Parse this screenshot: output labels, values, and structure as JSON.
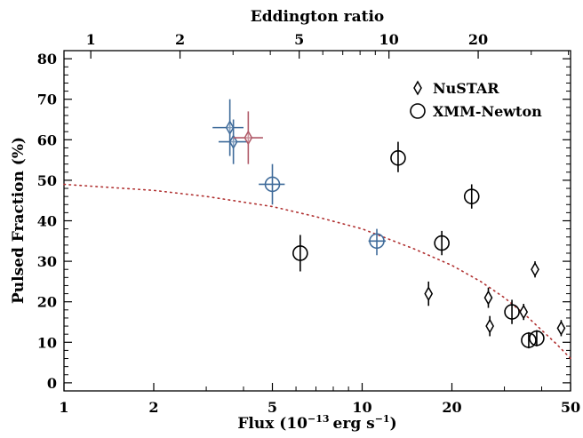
{
  "chart_data": {
    "type": "scatter",
    "xlabel": "Flux (10",
    "xlabel_exponent": "−13",
    "xlabel_units": "erg s",
    "xlabel_units_exponent": "−1",
    "xlabel_close": ")",
    "ylabel": "Pulsed Fraction (%)",
    "top_axis_label": "Eddington ratio",
    "x_scale": "log",
    "xlim": [
      1,
      50
    ],
    "ylim": [
      -2,
      82
    ],
    "x_ticks": [
      1,
      2,
      5,
      10,
      20,
      50
    ],
    "x_tick_labels": [
      "1",
      "2",
      "5",
      "10",
      "20",
      "50"
    ],
    "y_ticks": [
      0,
      10,
      20,
      30,
      40,
      50,
      60,
      70,
      80
    ],
    "y_tick_labels": [
      "0",
      "10",
      "20",
      "30",
      "40",
      "50",
      "60",
      "70",
      "80"
    ],
    "top_ticks_flux": [
      1.23,
      2.45,
      6.15,
      12.3,
      24.5
    ],
    "top_tick_labels": [
      "1",
      "2",
      "5",
      "10",
      "20"
    ],
    "grid": false,
    "legend_position": "top-right",
    "legend": [
      {
        "label": "NuSTAR",
        "marker": "diamond"
      },
      {
        "label": "XMM-Newton",
        "marker": "circle"
      }
    ],
    "colors": {
      "black": "#000000",
      "blue": "#3f6b9a",
      "red": "#b05a68",
      "model": "#b03030"
    },
    "series": [
      {
        "marker": "diamond",
        "points": [
          {
            "x": 3.6,
            "y": 63,
            "xerr": [
              3.15,
              4.0
            ],
            "yerr": [
              56,
              70
            ],
            "color": "blue"
          },
          {
            "x": 3.7,
            "y": 59.5,
            "xerr": [
              3.3,
              4.1
            ],
            "yerr": [
              54,
              65
            ],
            "color": "blue"
          },
          {
            "x": 4.15,
            "y": 60.5,
            "xerr": [
              3.7,
              4.65
            ],
            "yerr": [
              54,
              67
            ],
            "color": "red"
          },
          {
            "x": 16.7,
            "y": 22,
            "xerr": null,
            "yerr": [
              19,
              25
            ],
            "color": "black"
          },
          {
            "x": 26.5,
            "y": 21,
            "xerr": null,
            "yerr": [
              18.5,
              23.5
            ],
            "color": "black"
          },
          {
            "x": 26.8,
            "y": 14,
            "xerr": null,
            "yerr": [
              11.5,
              16.5
            ],
            "color": "black"
          },
          {
            "x": 34.8,
            "y": 17.5,
            "xerr": null,
            "yerr": [
              15.5,
              19.5
            ],
            "color": "black"
          },
          {
            "x": 38.0,
            "y": 28,
            "xerr": null,
            "yerr": [
              26,
              30
            ],
            "color": "black"
          },
          {
            "x": 46.5,
            "y": 13.5,
            "xerr": null,
            "yerr": [
              11.5,
              15.5
            ],
            "color": "black"
          }
        ]
      },
      {
        "marker": "circle",
        "points": [
          {
            "x": 5.0,
            "y": 49,
            "xerr": [
              4.5,
              5.5
            ],
            "yerr": [
              44,
              54
            ],
            "color": "blue"
          },
          {
            "x": 11.2,
            "y": 35,
            "xerr": [
              10.5,
              12.0
            ],
            "yerr": [
              31.5,
              38
            ],
            "color": "blue"
          },
          {
            "x": 6.2,
            "y": 32,
            "xerr": null,
            "yerr": [
              27.5,
              36.5
            ],
            "color": "black"
          },
          {
            "x": 13.2,
            "y": 55.5,
            "xerr": null,
            "yerr": [
              52,
              59.5
            ],
            "color": "black"
          },
          {
            "x": 18.5,
            "y": 34.5,
            "xerr": null,
            "yerr": [
              31.5,
              37.5
            ],
            "color": "black"
          },
          {
            "x": 23.3,
            "y": 46,
            "xerr": null,
            "yerr": [
              43,
              49
            ],
            "color": "black"
          },
          {
            "x": 31.8,
            "y": 17.5,
            "xerr": null,
            "yerr": [
              14.5,
              20.5
            ],
            "color": "black"
          },
          {
            "x": 36.2,
            "y": 10.5,
            "xerr": null,
            "yerr": [
              8.5,
              12.5
            ],
            "color": "black"
          },
          {
            "x": 38.5,
            "y": 11,
            "xerr": null,
            "yerr": [
              9,
              13
            ],
            "color": "black"
          }
        ]
      }
    ],
    "model_curve": {
      "style": "dotted",
      "color": "model",
      "x": [
        1,
        2,
        3,
        5,
        7,
        10,
        15,
        20,
        25,
        30,
        35,
        40,
        45,
        50
      ],
      "y": [
        49,
        47.5,
        46,
        43.5,
        41,
        38,
        33,
        29,
        25,
        21,
        17,
        13,
        9.5,
        6
      ]
    }
  }
}
